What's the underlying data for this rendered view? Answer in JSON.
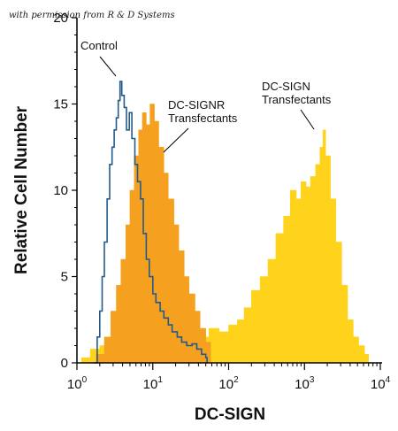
{
  "permission_note": "with permission from R & D Systems",
  "chart_data": {
    "type": "histogram",
    "xlabel": "DC-SIGN",
    "ylabel": "Relative Cell Number",
    "xscale": "log",
    "xlim": [
      1,
      10000
    ],
    "ylim": [
      0,
      20
    ],
    "xticks": [
      {
        "value": 1,
        "base": "10",
        "exp": "0"
      },
      {
        "value": 10,
        "base": "10",
        "exp": "1"
      },
      {
        "value": 100,
        "base": "10",
        "exp": "2"
      },
      {
        "value": 1000,
        "base": "10",
        "exp": "3"
      },
      {
        "value": 10000,
        "base": "10",
        "exp": "4"
      }
    ],
    "yticks": [
      "0",
      "5",
      "10",
      "15",
      "20"
    ],
    "grid": false,
    "annotations": {
      "control": "Control",
      "dc_signr_line1": "DC-SIGNR",
      "dc_signr_line2": "Transfectants",
      "dc_sign_line1": "DC-SIGN",
      "dc_sign_line2": "Transfectants"
    },
    "series": [
      {
        "key": "dc_sign",
        "style": "filled",
        "color": "#ffd21c",
        "points": [
          [
            1.15,
            0.3
          ],
          [
            1.5,
            0.8
          ],
          [
            2,
            1.0
          ],
          [
            3,
            0.8
          ],
          [
            4,
            1.2
          ],
          [
            5,
            1.3
          ],
          [
            6,
            1.0
          ],
          [
            8,
            1.5
          ],
          [
            10,
            1.8
          ],
          [
            14,
            1.5
          ],
          [
            20,
            1.6
          ],
          [
            30,
            1.8
          ],
          [
            40,
            1.5
          ],
          [
            55,
            2.0
          ],
          [
            75,
            1.8
          ],
          [
            100,
            2.2
          ],
          [
            130,
            2.5
          ],
          [
            160,
            3.2
          ],
          [
            200,
            4.2
          ],
          [
            260,
            5.0
          ],
          [
            330,
            6.0
          ],
          [
            420,
            7.5
          ],
          [
            530,
            8.5
          ],
          [
            650,
            10.0
          ],
          [
            780,
            9.5
          ],
          [
            900,
            10.5
          ],
          [
            1050,
            10.2
          ],
          [
            1200,
            10.8
          ],
          [
            1400,
            11.5
          ],
          [
            1600,
            12.5
          ],
          [
            1750,
            13.5
          ],
          [
            1900,
            12.0
          ],
          [
            2200,
            9.5
          ],
          [
            2600,
            7.0
          ],
          [
            3100,
            4.5
          ],
          [
            3700,
            2.5
          ],
          [
            4400,
            1.5
          ],
          [
            5200,
            1.0
          ],
          [
            6200,
            0.5
          ],
          [
            7000,
            0
          ]
        ]
      },
      {
        "key": "dc_signr",
        "style": "filled",
        "color": "#f5a01f",
        "points": [
          [
            1.3,
            0
          ],
          [
            1.8,
            0.5
          ],
          [
            2.3,
            1.5
          ],
          [
            2.8,
            3.0
          ],
          [
            3.3,
            4.5
          ],
          [
            3.8,
            6.0
          ],
          [
            4.4,
            8.0
          ],
          [
            5.0,
            10.0
          ],
          [
            5.7,
            12.0
          ],
          [
            6.5,
            13.5
          ],
          [
            7.3,
            14.5
          ],
          [
            8.2,
            13.8
          ],
          [
            9.2,
            15.0
          ],
          [
            10.5,
            14.0
          ],
          [
            12,
            12.5
          ],
          [
            14,
            11.0
          ],
          [
            16,
            9.5
          ],
          [
            19,
            8.0
          ],
          [
            22,
            6.5
          ],
          [
            26,
            5.0
          ],
          [
            30,
            4.0
          ],
          [
            36,
            3.0
          ],
          [
            42,
            2.0
          ],
          [
            50,
            1.2
          ],
          [
            58,
            0
          ]
        ]
      },
      {
        "key": "control",
        "style": "outline",
        "color": "#245a8a",
        "points": [
          [
            1.7,
            0
          ],
          [
            1.85,
            1.5
          ],
          [
            2.0,
            3.0
          ],
          [
            2.15,
            5.0
          ],
          [
            2.3,
            7.0
          ],
          [
            2.5,
            9.5
          ],
          [
            2.7,
            11.5
          ],
          [
            2.9,
            12.5
          ],
          [
            3.1,
            13.5
          ],
          [
            3.3,
            14.2
          ],
          [
            3.5,
            15.2
          ],
          [
            3.7,
            16.3
          ],
          [
            3.9,
            15.5
          ],
          [
            4.2,
            14.8
          ],
          [
            4.5,
            13.5
          ],
          [
            4.9,
            14.5
          ],
          [
            5.3,
            13.0
          ],
          [
            5.8,
            11.5
          ],
          [
            6.3,
            10.5
          ],
          [
            6.9,
            9.5
          ],
          [
            7.5,
            7.5
          ],
          [
            8.2,
            6.0
          ],
          [
            9.0,
            5.0
          ],
          [
            10,
            4.0
          ],
          [
            11,
            3.5
          ],
          [
            12.5,
            3.0
          ],
          [
            14,
            2.6
          ],
          [
            16,
            2.2
          ],
          [
            18,
            1.8
          ],
          [
            21,
            1.5
          ],
          [
            24,
            1.2
          ],
          [
            28,
            1.0
          ],
          [
            33,
            1.1
          ],
          [
            38,
            0.8
          ],
          [
            44,
            0.5
          ],
          [
            50,
            0.3
          ],
          [
            52,
            0
          ]
        ]
      }
    ]
  }
}
